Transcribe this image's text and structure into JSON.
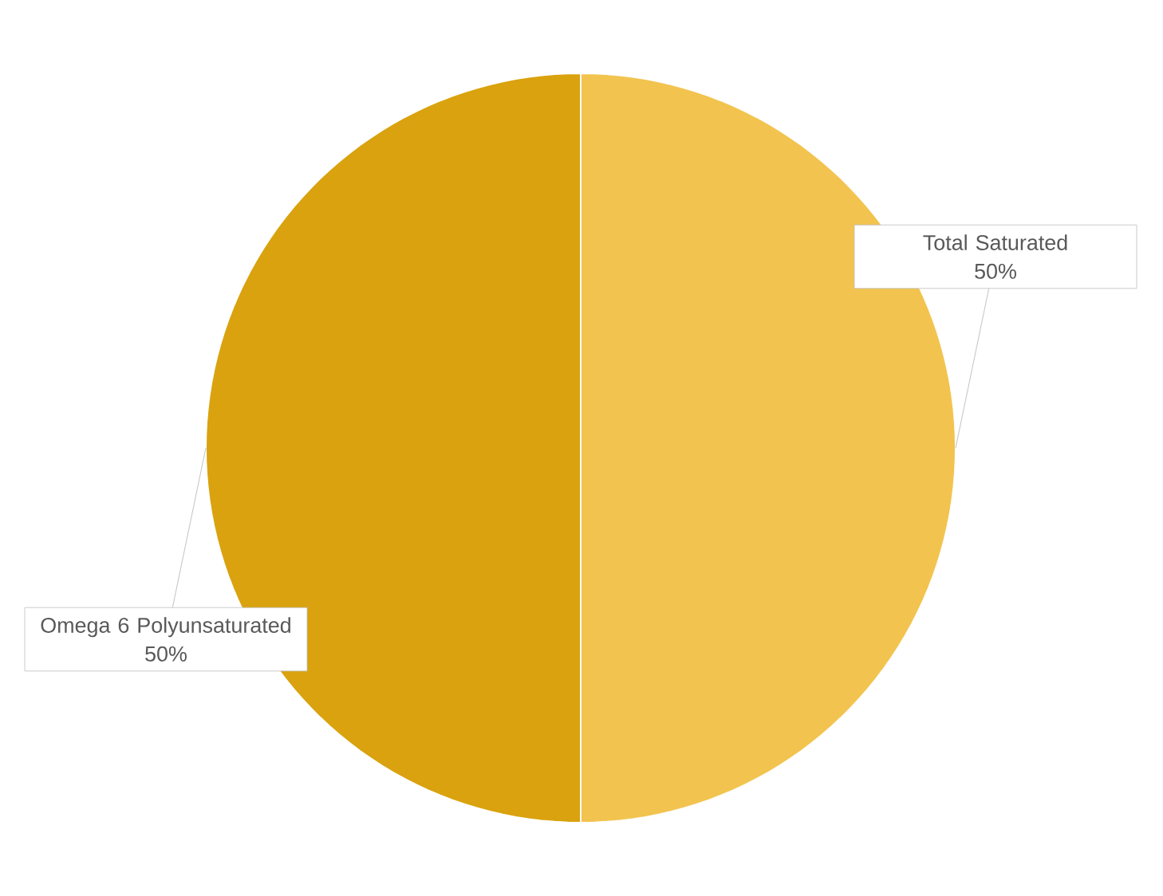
{
  "chart_data": {
    "type": "pie",
    "categories": [
      "Total Saturated",
      "Omega 6 Polyunsaturated"
    ],
    "values": [
      50,
      50
    ],
    "colors": [
      "#f2c44f",
      "#d9a20e"
    ],
    "value_labels": [
      "50%",
      "50%"
    ]
  }
}
